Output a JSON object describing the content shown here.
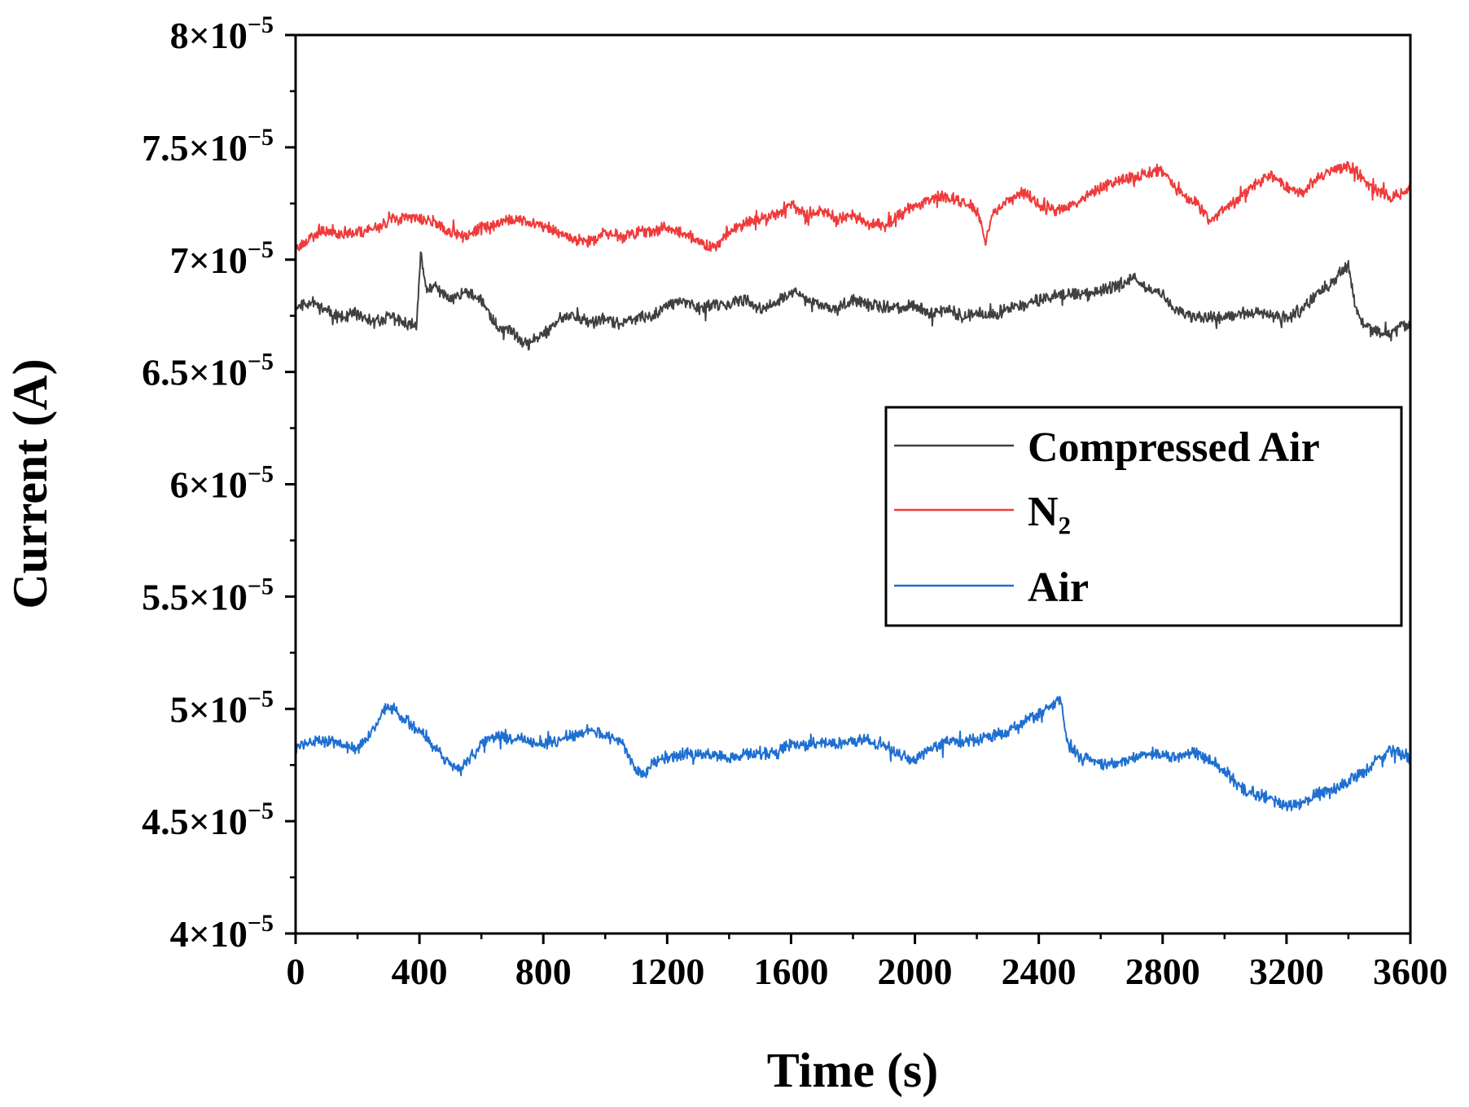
{
  "chart_data": {
    "type": "line",
    "title": "",
    "xlabel": "Time (s)",
    "ylabel": "Current (A)",
    "xlim": [
      0,
      3600
    ],
    "ylim": [
      4e-05,
      8e-05
    ],
    "x_ticks": [
      0,
      400,
      800,
      1200,
      1600,
      2000,
      2400,
      2800,
      3200,
      3600
    ],
    "x_tick_labels": [
      "0",
      "400",
      "800",
      "1200",
      "1600",
      "2000",
      "2400",
      "2800",
      "3200",
      "3600"
    ],
    "y_ticks": [
      4e-05,
      4.5e-05,
      5e-05,
      5.5e-05,
      6e-05,
      6.5e-05,
      7e-05,
      7.5e-05,
      8e-05
    ],
    "y_tick_mantissas": [
      "4",
      "4.5",
      "5",
      "5.5",
      "6",
      "6.5",
      "7",
      "7.5",
      "8"
    ],
    "y_tick_base": "×10",
    "y_tick_exponent": "−5",
    "legend_position": "center-right",
    "series": [
      {
        "name": "Compressed Air",
        "color": "#404040",
        "noise": 0.8,
        "seed": 11,
        "x": [
          0,
          50,
          100,
          150,
          200,
          250,
          300,
          350,
          390,
          405,
          420,
          450,
          500,
          550,
          600,
          650,
          700,
          750,
          800,
          850,
          900,
          950,
          1000,
          1050,
          1100,
          1150,
          1200,
          1250,
          1300,
          1350,
          1400,
          1450,
          1500,
          1550,
          1600,
          1650,
          1700,
          1750,
          1800,
          1850,
          1900,
          1950,
          2000,
          2050,
          2100,
          2150,
          2200,
          2250,
          2300,
          2350,
          2400,
          2450,
          2500,
          2550,
          2600,
          2650,
          2700,
          2750,
          2800,
          2850,
          2900,
          2950,
          3000,
          3050,
          3100,
          3150,
          3200,
          3250,
          3300,
          3350,
          3380,
          3400,
          3420,
          3450,
          3500,
          3550,
          3600
        ],
        "y": [
          6.79,
          6.81,
          6.77,
          6.74,
          6.76,
          6.72,
          6.75,
          6.72,
          6.7,
          7.05,
          6.86,
          6.88,
          6.82,
          6.86,
          6.82,
          6.7,
          6.68,
          6.62,
          6.67,
          6.73,
          6.75,
          6.72,
          6.73,
          6.72,
          6.74,
          6.75,
          6.8,
          6.82,
          6.78,
          6.8,
          6.8,
          6.82,
          6.78,
          6.8,
          6.86,
          6.82,
          6.8,
          6.78,
          6.82,
          6.8,
          6.79,
          6.78,
          6.8,
          6.76,
          6.78,
          6.75,
          6.76,
          6.75,
          6.78,
          6.8,
          6.82,
          6.84,
          6.85,
          6.84,
          6.86,
          6.88,
          6.92,
          6.88,
          6.84,
          6.77,
          6.74,
          6.75,
          6.74,
          6.76,
          6.76,
          6.75,
          6.74,
          6.78,
          6.85,
          6.9,
          6.95,
          6.98,
          6.8,
          6.7,
          6.67,
          6.68,
          6.72
        ]
      },
      {
        "name": "N₂",
        "color": "#ef3b3b",
        "noise": 0.8,
        "seed": 23,
        "x": [
          0,
          50,
          100,
          150,
          200,
          250,
          300,
          350,
          400,
          450,
          500,
          550,
          600,
          650,
          700,
          750,
          800,
          850,
          900,
          950,
          1000,
          1050,
          1100,
          1150,
          1200,
          1250,
          1300,
          1350,
          1400,
          1450,
          1500,
          1550,
          1600,
          1650,
          1700,
          1750,
          1800,
          1850,
          1900,
          1950,
          2000,
          2050,
          2100,
          2150,
          2200,
          2230,
          2250,
          2300,
          2350,
          2400,
          2450,
          2500,
          2550,
          2600,
          2650,
          2700,
          2750,
          2800,
          2850,
          2900,
          2950,
          3000,
          3050,
          3100,
          3150,
          3200,
          3250,
          3300,
          3350,
          3400,
          3450,
          3500,
          3550,
          3600
        ],
        "y": [
          7.05,
          7.1,
          7.13,
          7.12,
          7.12,
          7.14,
          7.17,
          7.19,
          7.18,
          7.17,
          7.12,
          7.1,
          7.14,
          7.16,
          7.18,
          7.17,
          7.15,
          7.12,
          7.1,
          7.08,
          7.12,
          7.1,
          7.12,
          7.13,
          7.14,
          7.12,
          7.08,
          7.06,
          7.12,
          7.16,
          7.18,
          7.2,
          7.24,
          7.2,
          7.22,
          7.18,
          7.2,
          7.16,
          7.15,
          7.2,
          7.24,
          7.27,
          7.28,
          7.26,
          7.22,
          7.08,
          7.2,
          7.26,
          7.3,
          7.25,
          7.22,
          7.24,
          7.28,
          7.32,
          7.35,
          7.36,
          7.38,
          7.4,
          7.3,
          7.26,
          7.18,
          7.22,
          7.28,
          7.34,
          7.38,
          7.32,
          7.3,
          7.36,
          7.4,
          7.42,
          7.36,
          7.3,
          7.28,
          7.32
        ]
      },
      {
        "name": "Air",
        "color": "#1f6fd1",
        "noise": 0.8,
        "seed": 37,
        "x": [
          0,
          50,
          100,
          150,
          200,
          250,
          280,
          300,
          350,
          400,
          450,
          500,
          530,
          550,
          600,
          650,
          700,
          750,
          800,
          850,
          900,
          950,
          1000,
          1050,
          1100,
          1130,
          1150,
          1200,
          1250,
          1300,
          1350,
          1400,
          1450,
          1500,
          1550,
          1600,
          1650,
          1700,
          1750,
          1800,
          1850,
          1900,
          1950,
          2000,
          2050,
          2100,
          2150,
          2200,
          2250,
          2300,
          2350,
          2400,
          2450,
          2470,
          2490,
          2500,
          2550,
          2600,
          2650,
          2700,
          2750,
          2800,
          2850,
          2900,
          2950,
          3000,
          3050,
          3100,
          3150,
          3200,
          3250,
          3300,
          3350,
          3400,
          3450,
          3500,
          3550,
          3600
        ],
        "y": [
          4.83,
          4.85,
          4.86,
          4.84,
          4.82,
          4.9,
          4.98,
          5.02,
          4.96,
          4.9,
          4.82,
          4.76,
          4.72,
          4.76,
          4.84,
          4.88,
          4.87,
          4.86,
          4.84,
          4.86,
          4.88,
          4.92,
          4.88,
          4.86,
          4.72,
          4.7,
          4.76,
          4.78,
          4.8,
          4.8,
          4.8,
          4.78,
          4.8,
          4.8,
          4.8,
          4.84,
          4.84,
          4.85,
          4.84,
          4.86,
          4.86,
          4.84,
          4.8,
          4.77,
          4.82,
          4.86,
          4.85,
          4.86,
          4.88,
          4.9,
          4.94,
          4.98,
          5.02,
          5.04,
          4.88,
          4.82,
          4.78,
          4.76,
          4.76,
          4.78,
          4.8,
          4.8,
          4.78,
          4.8,
          4.78,
          4.72,
          4.65,
          4.62,
          4.6,
          4.56,
          4.58,
          4.62,
          4.64,
          4.68,
          4.72,
          4.78,
          4.82,
          4.78
        ]
      }
    ]
  }
}
